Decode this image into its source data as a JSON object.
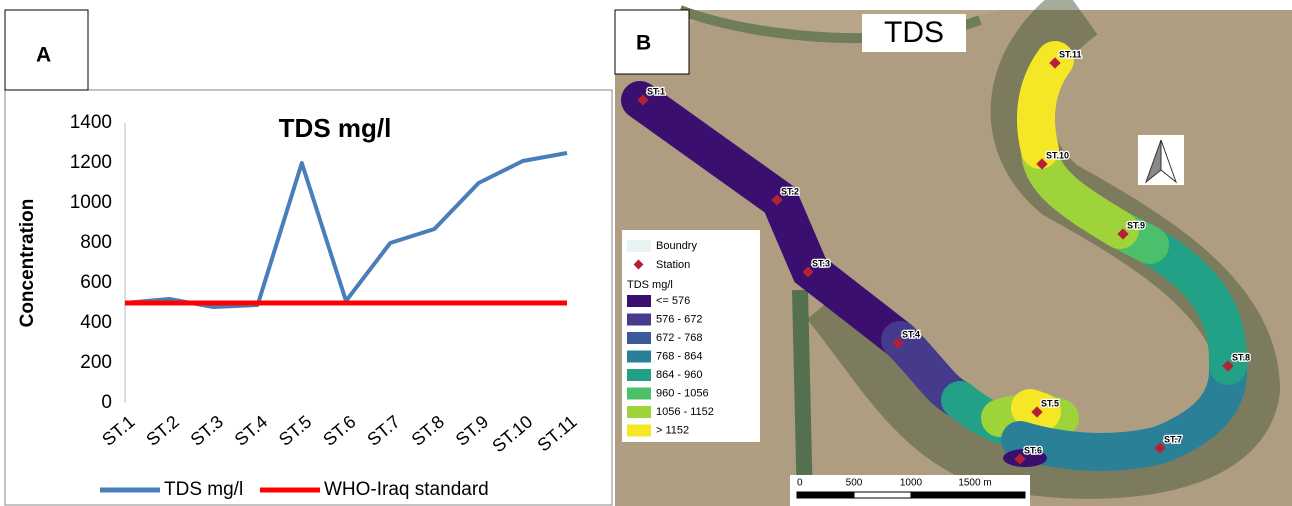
{
  "chart_data": {
    "type": "line",
    "title": "TDS mg/l",
    "y_label": "Concentration",
    "categories": [
      "ST.1",
      "ST.2",
      "ST.3",
      "ST.4",
      "ST.5",
      "ST.6",
      "ST.7",
      "ST.8",
      "ST.9",
      "ST.10",
      "ST.11"
    ],
    "series": [
      {
        "name": "TDS mg/l",
        "color": "#4a7ebb",
        "values": [
          500,
          520,
          480,
          490,
          1200,
          510,
          800,
          870,
          1100,
          1210,
          1250
        ]
      },
      {
        "name": "WHO-Iraq standard",
        "color": "#ff0000",
        "values": [
          500,
          500,
          500,
          500,
          500,
          500,
          500,
          500,
          500,
          500,
          500
        ]
      }
    ],
    "ylim": [
      0,
      1400
    ],
    "yticks": [
      0,
      200,
      400,
      600,
      800,
      1000,
      1200,
      1400
    ],
    "grid": false,
    "legend": "bottom"
  },
  "panels": {
    "a": "A",
    "b": "B"
  },
  "map": {
    "title": "TDS",
    "legend": {
      "boundary": "Boundry",
      "station": "Station",
      "heading": "TDS  mg/l",
      "classes": [
        {
          "label": "<= 576",
          "color": "#3b0f70"
        },
        {
          "label": "576 - 672",
          "color": "#453a8c"
        },
        {
          "label": "672 - 768",
          "color": "#3b5a9a"
        },
        {
          "label": "768 - 864",
          "color": "#2a8096"
        },
        {
          "label": "864 - 960",
          "color": "#22a187"
        },
        {
          "label": "960 - 1056",
          "color": "#4cbf6a"
        },
        {
          "label": "1056 - 1152",
          "color": "#9fd33a"
        },
        {
          "label": "> 1152",
          "color": "#f5e626"
        }
      ]
    },
    "stations": [
      "ST.1",
      "ST.2",
      "ST.3",
      "ST.4",
      "ST.5",
      "ST.6",
      "ST.7",
      "ST.8",
      "ST.9",
      "ST.10",
      "ST.11"
    ],
    "scale": [
      "0",
      "500",
      "1000",
      "1500 m"
    ]
  }
}
